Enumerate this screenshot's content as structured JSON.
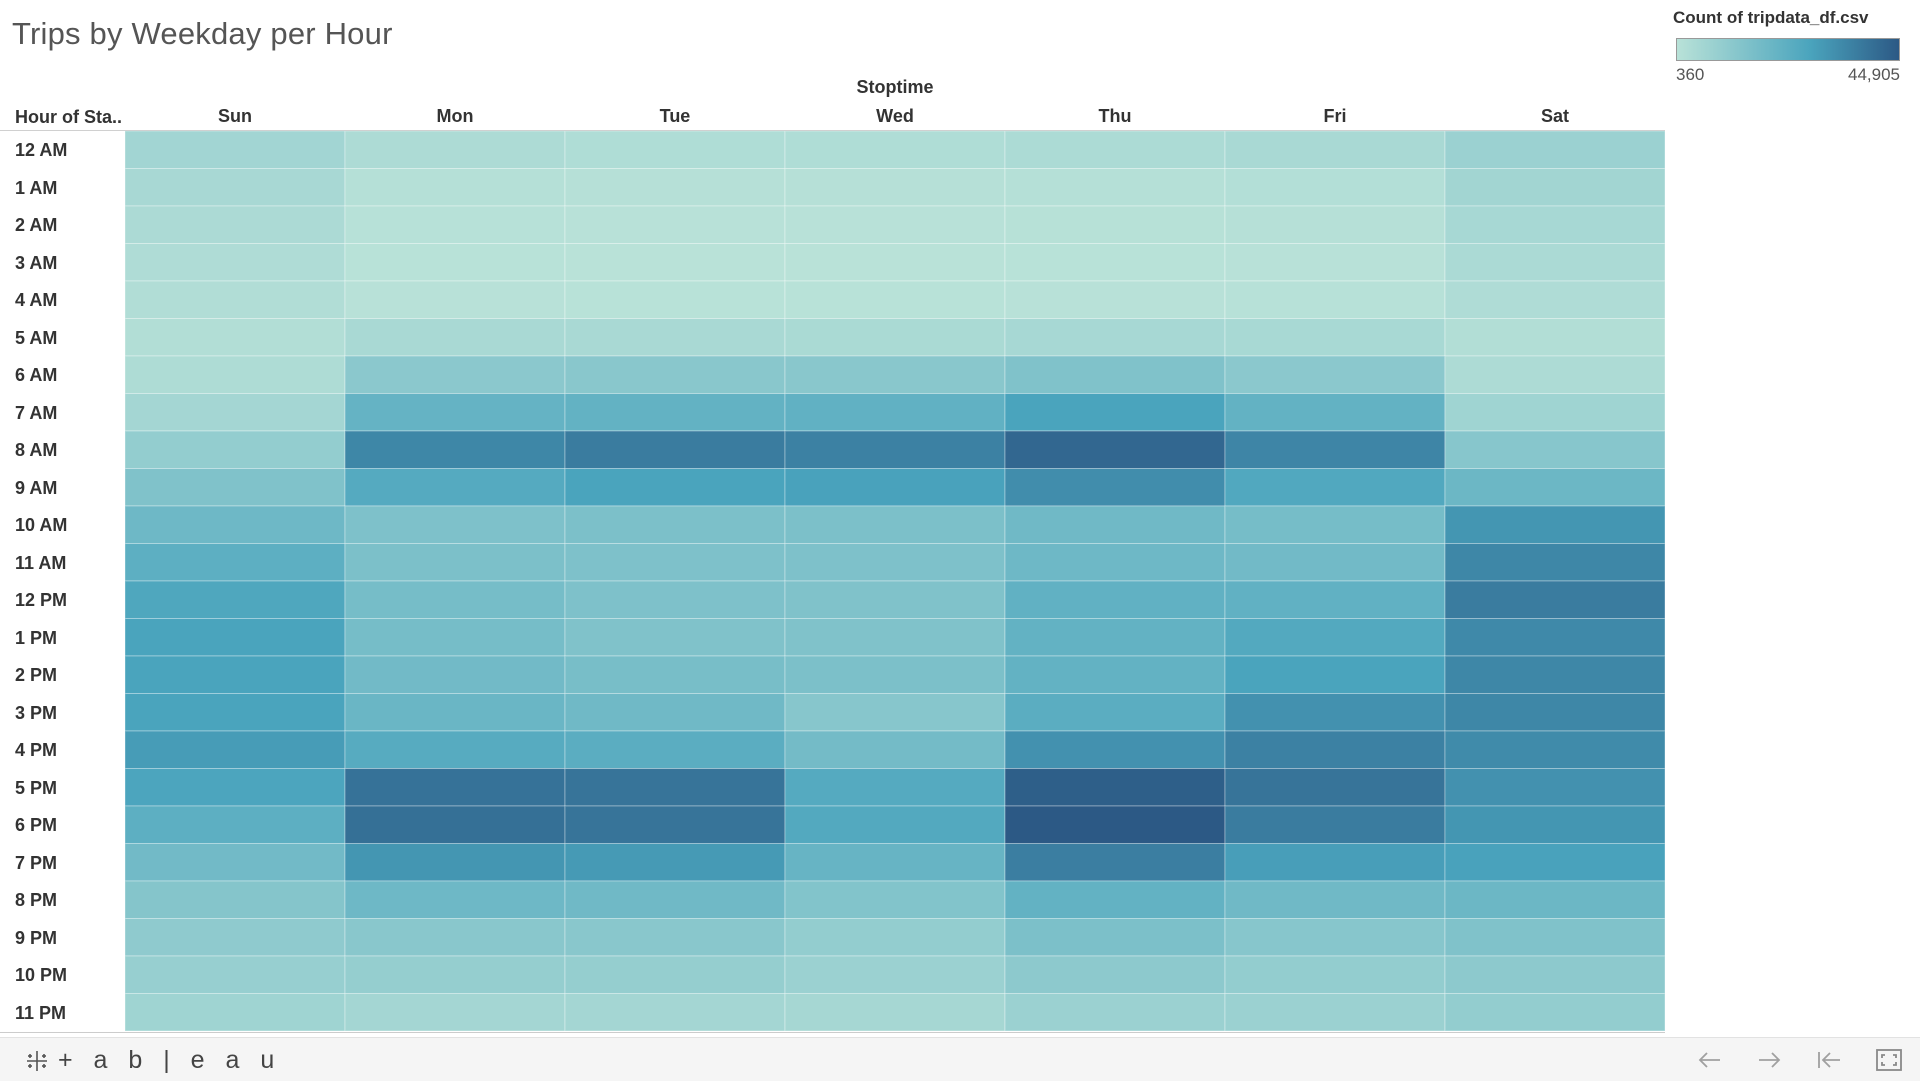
{
  "title": "Trips by Weekday per Hour",
  "legend": {
    "title": "Count of tripdata_df.csv",
    "min_label": "360",
    "max_label": "44,905"
  },
  "col_group_title": "Stoptime",
  "row_header": "Hour of Sta..",
  "colors": {
    "low": "#b9e2d8",
    "mid": "#4aa4bd",
    "high": "#2c5985"
  },
  "chart_data": {
    "type": "heatmap",
    "title": "Trips by Weekday per Hour",
    "xlabel": "Stoptime",
    "ylabel": "Hour of Sta..",
    "columns": [
      "Sun",
      "Mon",
      "Tue",
      "Wed",
      "Thu",
      "Fri",
      "Sat"
    ],
    "rows": [
      "12 AM",
      "1 AM",
      "2 AM",
      "3 AM",
      "4 AM",
      "5 AM",
      "6 AM",
      "7 AM",
      "8 AM",
      "9 AM",
      "10 AM",
      "11 AM",
      "12 PM",
      "1 PM",
      "2 PM",
      "3 PM",
      "4 PM",
      "5 PM",
      "6 PM",
      "7 PM",
      "8 PM",
      "9 PM",
      "10 PM",
      "11 PM"
    ],
    "value_range": [
      360,
      44905
    ],
    "values": [
      [
        5800,
        3200,
        2700,
        2700,
        3500,
        4200,
        7500
      ],
      [
        4500,
        1300,
        1100,
        1100,
        1400,
        1800,
        6000
      ],
      [
        3600,
        800,
        700,
        700,
        900,
        1100,
        4800
      ],
      [
        2800,
        500,
        400,
        360,
        500,
        700,
        3700
      ],
      [
        2300,
        600,
        500,
        500,
        600,
        800,
        2800
      ],
      [
        2000,
        4300,
        4100,
        4000,
        4600,
        4400,
        2100
      ],
      [
        2900,
        11500,
        12000,
        11800,
        14000,
        11500,
        3200
      ],
      [
        5500,
        20500,
        21000,
        21500,
        27000,
        21000,
        6500
      ],
      [
        9500,
        34000,
        36500,
        35500,
        41500,
        34500,
        12500
      ],
      [
        14000,
        24500,
        27000,
        27500,
        32500,
        25500,
        19000
      ],
      [
        18500,
        14500,
        15000,
        15000,
        18000,
        16500,
        30500
      ],
      [
        22500,
        15000,
        14500,
        14500,
        18500,
        17500,
        34000
      ],
      [
        26000,
        16500,
        14500,
        14000,
        21500,
        21500,
        36500
      ],
      [
        27000,
        16500,
        14000,
        14000,
        21000,
        25000,
        33500
      ],
      [
        27000,
        17500,
        16000,
        15000,
        21000,
        27000,
        34000
      ],
      [
        27000,
        19500,
        18000,
        12500,
        23000,
        31500,
        34000
      ],
      [
        29000,
        24000,
        23000,
        17000,
        31500,
        35500,
        33000
      ],
      [
        26500,
        39000,
        38500,
        24500,
        43500,
        38500,
        31500
      ],
      [
        22500,
        39500,
        38500,
        25000,
        44905,
        36500,
        30500
      ],
      [
        17500,
        30500,
        29500,
        20000,
        36000,
        28500,
        27500
      ],
      [
        13000,
        18500,
        18000,
        13500,
        21000,
        18000,
        19000
      ],
      [
        10500,
        12000,
        12000,
        9500,
        15000,
        12500,
        14000
      ],
      [
        8500,
        9000,
        9000,
        7500,
        11000,
        9500,
        11000
      ],
      [
        6500,
        5500,
        5500,
        5000,
        7500,
        7500,
        9500
      ]
    ]
  },
  "footer": {
    "logo_text": "+ a b | e a u",
    "icons": [
      "undo-icon",
      "redo-icon",
      "revert-icon",
      "fullscreen-icon"
    ]
  }
}
